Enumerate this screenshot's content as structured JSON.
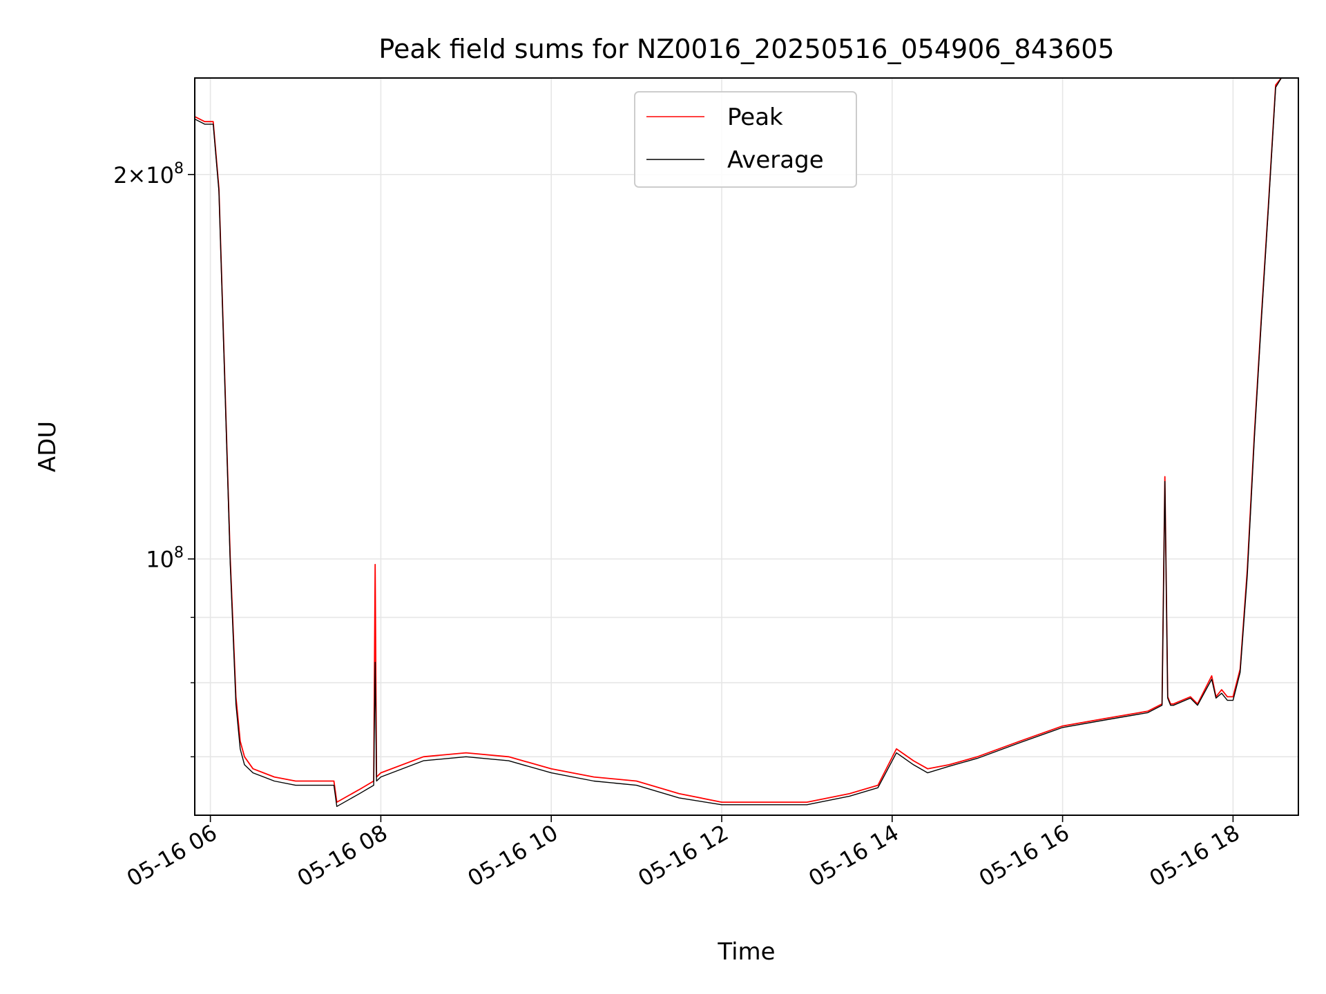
{
  "chart_data": {
    "type": "line",
    "title": "Peak field sums for NZ0016_20250516_054906_843605",
    "xlabel": "Time",
    "ylabel": "ADU",
    "y_scale": "log",
    "ylim": [
      63000000,
      238000000
    ],
    "xlim": [
      "2025-05-16 05:49",
      "2025-05-16 18:46"
    ],
    "x_ticks": [
      {
        "t": "2025-05-16 06:00",
        "label": "05-16 06"
      },
      {
        "t": "2025-05-16 08:00",
        "label": "05-16 08"
      },
      {
        "t": "2025-05-16 10:00",
        "label": "05-16 10"
      },
      {
        "t": "2025-05-16 12:00",
        "label": "05-16 12"
      },
      {
        "t": "2025-05-16 14:00",
        "label": "05-16 14"
      },
      {
        "t": "2025-05-16 16:00",
        "label": "05-16 16"
      },
      {
        "t": "2025-05-16 18:00",
        "label": "05-16 18"
      }
    ],
    "y_ticks_major": [
      {
        "value": 100000000,
        "base": "10",
        "exp": "8",
        "prefix": ""
      },
      {
        "value": 200000000,
        "base": "10",
        "exp": "8",
        "prefix": "2×"
      }
    ],
    "y_ticks_minor": [
      70000000,
      80000000,
      90000000
    ],
    "grid": true,
    "legend_position": "upper center",
    "series": [
      {
        "name": "Peak",
        "color": "#ff0000",
        "x": [
          "2025-05-16 05:49",
          "2025-05-16 05:56",
          "2025-05-16 06:02",
          "2025-05-16 06:06",
          "2025-05-16 06:10",
          "2025-05-16 06:14",
          "2025-05-16 06:18",
          "2025-05-16 06:21",
          "2025-05-16 06:24",
          "2025-05-16 06:30",
          "2025-05-16 06:45",
          "2025-05-16 07:00",
          "2025-05-16 07:15",
          "2025-05-16 07:27",
          "2025-05-16 07:29",
          "2025-05-16 07:45",
          "2025-05-16 07:55",
          "2025-05-16 07:56",
          "2025-05-16 07:57",
          "2025-05-16 08:00",
          "2025-05-16 08:30",
          "2025-05-16 09:00",
          "2025-05-16 09:30",
          "2025-05-16 10:00",
          "2025-05-16 10:30",
          "2025-05-16 11:00",
          "2025-05-16 11:30",
          "2025-05-16 12:00",
          "2025-05-16 12:30",
          "2025-05-16 13:00",
          "2025-05-16 13:30",
          "2025-05-16 13:50",
          "2025-05-16 14:03",
          "2025-05-16 14:15",
          "2025-05-16 14:25",
          "2025-05-16 14:40",
          "2025-05-16 15:00",
          "2025-05-16 15:30",
          "2025-05-16 16:00",
          "2025-05-16 16:30",
          "2025-05-16 17:00",
          "2025-05-16 17:10",
          "2025-05-16 17:12",
          "2025-05-16 17:14",
          "2025-05-16 17:16",
          "2025-05-16 17:18",
          "2025-05-16 17:30",
          "2025-05-16 17:35",
          "2025-05-16 17:45",
          "2025-05-16 17:48",
          "2025-05-16 17:52",
          "2025-05-16 17:56",
          "2025-05-16 18:00",
          "2025-05-16 18:05",
          "2025-05-16 18:10",
          "2025-05-16 18:15",
          "2025-05-16 18:20",
          "2025-05-16 18:25",
          "2025-05-16 18:30",
          "2025-05-16 18:34",
          "2025-05-16 18:46"
        ],
        "values": [
          222000000,
          220000000,
          220000000,
          195000000,
          140000000,
          100000000,
          78000000,
          72000000,
          70000000,
          68500000,
          67500000,
          67000000,
          67000000,
          67000000,
          64500000,
          66000000,
          67000000,
          99000000,
          67500000,
          68000000,
          70000000,
          70500000,
          70000000,
          68500000,
          67500000,
          67000000,
          65500000,
          64500000,
          64500000,
          64500000,
          65500000,
          66500000,
          71000000,
          69500000,
          68500000,
          69000000,
          70000000,
          72000000,
          74000000,
          75000000,
          76000000,
          77000000,
          116000000,
          78000000,
          77000000,
          77000000,
          78000000,
          77000000,
          81000000,
          78000000,
          79000000,
          78000000,
          78000000,
          82000000,
          98000000,
          125000000,
          155000000,
          190000000,
          235000000,
          238000000,
          238000000
        ]
      },
      {
        "name": "Average",
        "color": "#000000",
        "x": [
          "2025-05-16 05:49",
          "2025-05-16 05:56",
          "2025-05-16 06:02",
          "2025-05-16 06:06",
          "2025-05-16 06:10",
          "2025-05-16 06:14",
          "2025-05-16 06:18",
          "2025-05-16 06:21",
          "2025-05-16 06:24",
          "2025-05-16 06:30",
          "2025-05-16 06:45",
          "2025-05-16 07:00",
          "2025-05-16 07:15",
          "2025-05-16 07:27",
          "2025-05-16 07:29",
          "2025-05-16 07:45",
          "2025-05-16 07:55",
          "2025-05-16 07:56",
          "2025-05-16 07:57",
          "2025-05-16 08:00",
          "2025-05-16 08:30",
          "2025-05-16 09:00",
          "2025-05-16 09:30",
          "2025-05-16 10:00",
          "2025-05-16 10:30",
          "2025-05-16 11:00",
          "2025-05-16 11:30",
          "2025-05-16 12:00",
          "2025-05-16 12:30",
          "2025-05-16 13:00",
          "2025-05-16 13:30",
          "2025-05-16 13:50",
          "2025-05-16 14:03",
          "2025-05-16 14:15",
          "2025-05-16 14:25",
          "2025-05-16 14:40",
          "2025-05-16 15:00",
          "2025-05-16 15:30",
          "2025-05-16 16:00",
          "2025-05-16 16:30",
          "2025-05-16 17:00",
          "2025-05-16 17:10",
          "2025-05-16 17:12",
          "2025-05-16 17:14",
          "2025-05-16 17:16",
          "2025-05-16 17:18",
          "2025-05-16 17:30",
          "2025-05-16 17:35",
          "2025-05-16 17:45",
          "2025-05-16 17:48",
          "2025-05-16 17:52",
          "2025-05-16 17:56",
          "2025-05-16 18:00",
          "2025-05-16 18:05",
          "2025-05-16 18:10",
          "2025-05-16 18:15",
          "2025-05-16 18:20",
          "2025-05-16 18:25",
          "2025-05-16 18:30",
          "2025-05-16 18:34",
          "2025-05-16 18:46"
        ],
        "values": [
          221000000,
          219000000,
          219000000,
          194000000,
          139000000,
          99000000,
          77000000,
          71000000,
          69000000,
          68000000,
          67000000,
          66500000,
          66500000,
          66500000,
          64000000,
          65500000,
          66500000,
          83000000,
          67000000,
          67500000,
          69500000,
          70000000,
          69500000,
          68000000,
          67000000,
          66500000,
          65000000,
          64200000,
          64200000,
          64200000,
          65200000,
          66200000,
          70500000,
          69000000,
          68000000,
          68800000,
          69800000,
          71800000,
          73800000,
          74800000,
          75800000,
          76800000,
          115000000,
          77800000,
          76800000,
          76800000,
          77800000,
          76800000,
          80500000,
          77800000,
          78500000,
          77500000,
          77500000,
          81500000,
          97000000,
          124000000,
          154000000,
          189000000,
          234000000,
          238000000,
          238000000
        ]
      }
    ]
  }
}
